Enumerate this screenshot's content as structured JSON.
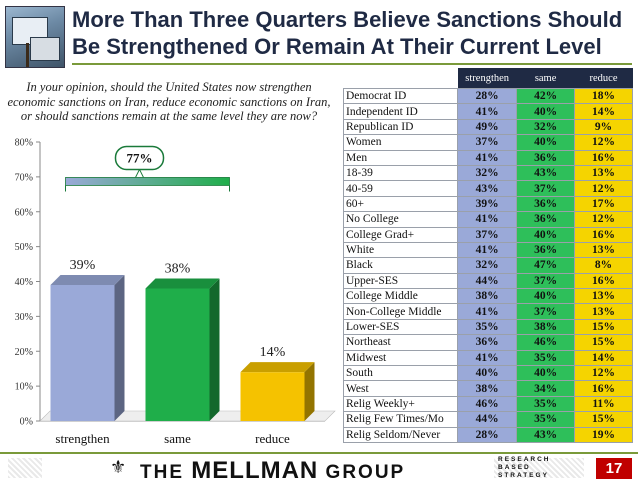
{
  "title": "More Than Three Quarters Believe Sanctions Should Be Strengthened Or Remain At Their Current Level",
  "question": "In your opinion, should the United States now strengthen economic sanctions on Iran, reduce economic sanctions on Iran, or should sanctions remain at the same level they are now?",
  "chart_data": {
    "type": "bar",
    "categories": [
      "strengthen",
      "same",
      "reduce"
    ],
    "values": [
      39,
      38,
      14
    ],
    "value_labels": [
      "39%",
      "38%",
      "14%"
    ],
    "colors": [
      "#9aa9d8",
      "#1fae4a",
      "#f5c200"
    ],
    "ylim": [
      0,
      80
    ],
    "yticks": [
      "0%",
      "10%",
      "20%",
      "30%",
      "40%",
      "50%",
      "60%",
      "70%",
      "80%"
    ],
    "ytick_values": [
      0,
      10,
      20,
      30,
      40,
      50,
      60,
      70,
      80
    ],
    "bracket_label": "77%",
    "bracket_value": 77,
    "grid": false
  },
  "table": {
    "headers": [
      "strengthen",
      "same",
      "reduce"
    ],
    "rows": [
      {
        "label": "Democrat ID",
        "values": [
          "28%",
          "42%",
          "18%"
        ]
      },
      {
        "label": "Independent ID",
        "values": [
          "41%",
          "40%",
          "14%"
        ]
      },
      {
        "label": "Republican ID",
        "values": [
          "49%",
          "32%",
          "9%"
        ]
      },
      {
        "label": "Women",
        "values": [
          "37%",
          "40%",
          "12%"
        ]
      },
      {
        "label": "Men",
        "values": [
          "41%",
          "36%",
          "16%"
        ]
      },
      {
        "label": "18-39",
        "values": [
          "32%",
          "43%",
          "13%"
        ]
      },
      {
        "label": "40-59",
        "values": [
          "43%",
          "37%",
          "12%"
        ]
      },
      {
        "label": "60+",
        "values": [
          "39%",
          "36%",
          "17%"
        ]
      },
      {
        "label": "No College",
        "values": [
          "41%",
          "36%",
          "12%"
        ]
      },
      {
        "label": "College Grad+",
        "values": [
          "37%",
          "40%",
          "16%"
        ]
      },
      {
        "label": "White",
        "values": [
          "41%",
          "36%",
          "13%"
        ]
      },
      {
        "label": "Black",
        "values": [
          "32%",
          "47%",
          "8%"
        ]
      },
      {
        "label": "Upper-SES",
        "values": [
          "44%",
          "37%",
          "16%"
        ]
      },
      {
        "label": "College Middle",
        "values": [
          "38%",
          "40%",
          "13%"
        ]
      },
      {
        "label": "Non-College Middle",
        "values": [
          "41%",
          "37%",
          "13%"
        ]
      },
      {
        "label": "Lower-SES",
        "values": [
          "35%",
          "38%",
          "15%"
        ]
      },
      {
        "label": "Northeast",
        "values": [
          "36%",
          "46%",
          "15%"
        ]
      },
      {
        "label": "Midwest",
        "values": [
          "41%",
          "35%",
          "14%"
        ]
      },
      {
        "label": "South",
        "values": [
          "40%",
          "40%",
          "12%"
        ]
      },
      {
        "label": "West",
        "values": [
          "38%",
          "34%",
          "16%"
        ]
      },
      {
        "label": "Relig Weekly+",
        "values": [
          "46%",
          "35%",
          "11%"
        ]
      },
      {
        "label": "Relig Few Times/Mo",
        "values": [
          "44%",
          "35%",
          "15%"
        ]
      },
      {
        "label": "Relig Seldom/Never",
        "values": [
          "28%",
          "43%",
          "19%"
        ]
      }
    ]
  },
  "footer": {
    "logo_prefix": "THE ",
    "logo_main": "MELLMAN",
    "logo_suffix": " GROUP",
    "tagline": [
      "RESEARCH",
      "BASED",
      "STRATEGY"
    ],
    "page_number": "17",
    "logo_icon": "seal-icon"
  }
}
